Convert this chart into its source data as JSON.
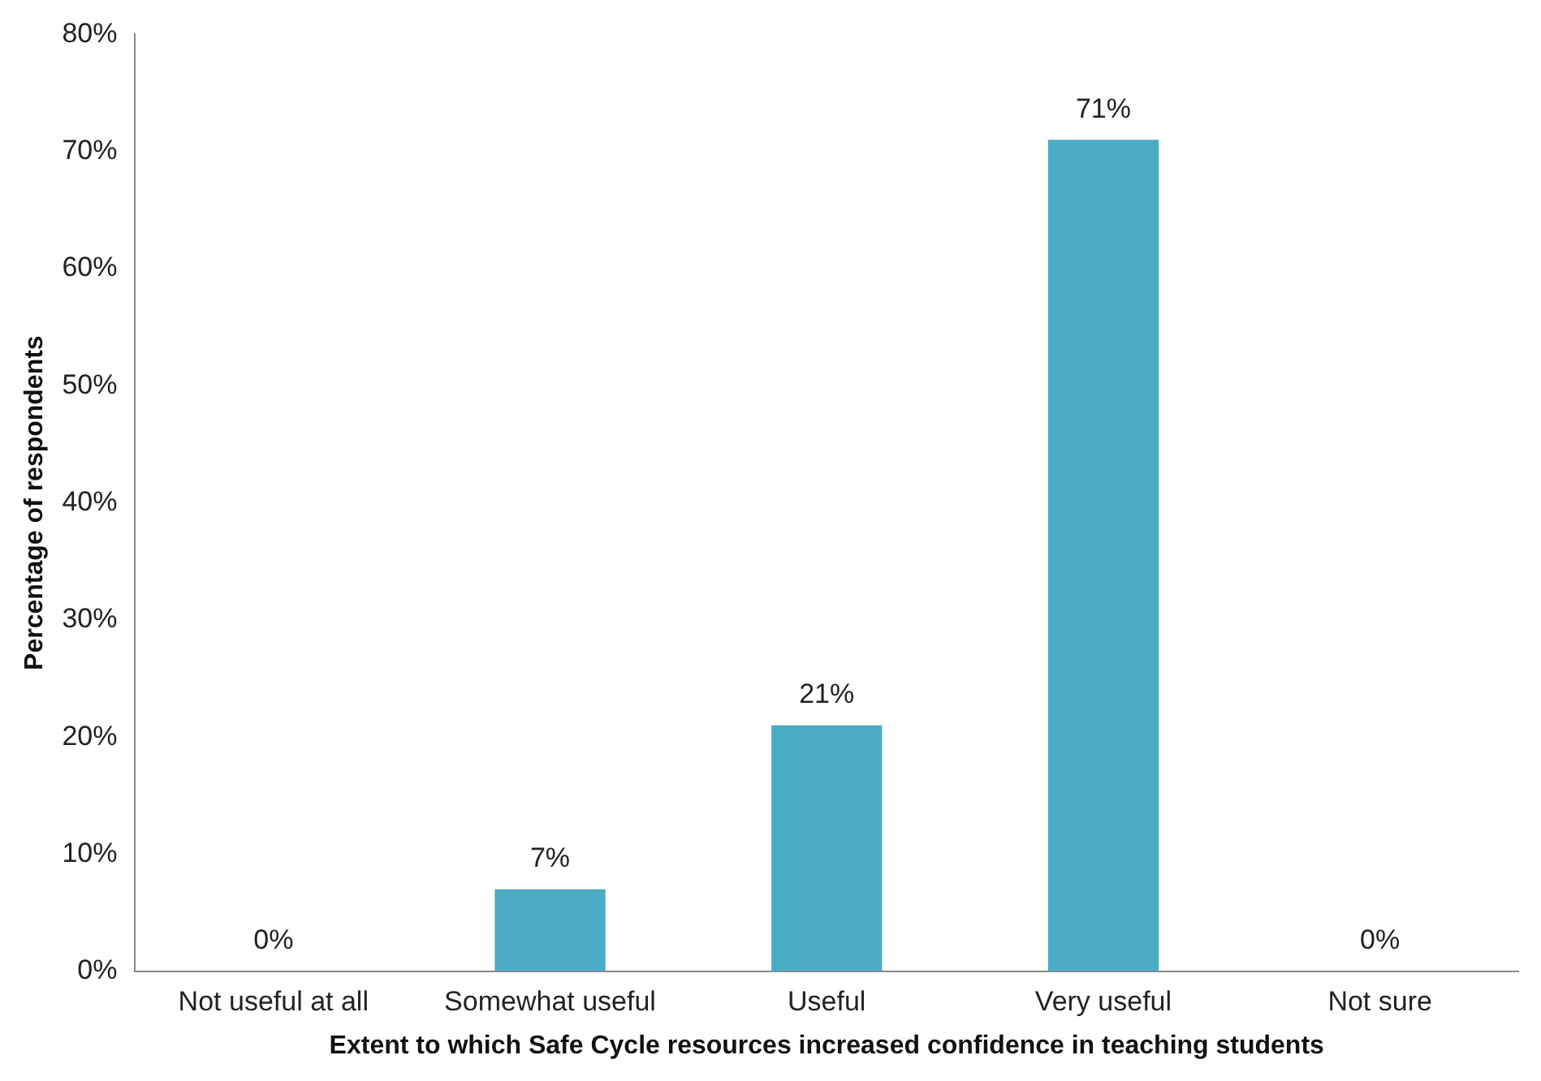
{
  "chart_data": {
    "type": "bar",
    "xlabel": "Extent to which Safe Cycle resources increased confidence in teaching students",
    "ylabel": "Percentage of respondents",
    "categories": [
      "Not useful at all",
      "Somewhat useful",
      "Useful",
      "Very useful",
      "Not sure"
    ],
    "values": [
      0,
      7,
      21,
      71,
      0
    ],
    "color": "#4bacc6",
    "value_labels": [
      "0%",
      "7%",
      "21%",
      "71%",
      "0%"
    ],
    "ylim": [
      0,
      80
    ],
    "yticks": [
      {
        "value": 0,
        "label": "0%"
      },
      {
        "value": 10,
        "label": "10%"
      },
      {
        "value": 20,
        "label": "20%"
      },
      {
        "value": 30,
        "label": "30%"
      },
      {
        "value": 40,
        "label": "40%"
      },
      {
        "value": 50,
        "label": "50%"
      },
      {
        "value": 60,
        "label": "60%"
      },
      {
        "value": 70,
        "label": "70%"
      },
      {
        "value": 80,
        "label": "80%"
      }
    ],
    "grid": false,
    "legend": false
  }
}
